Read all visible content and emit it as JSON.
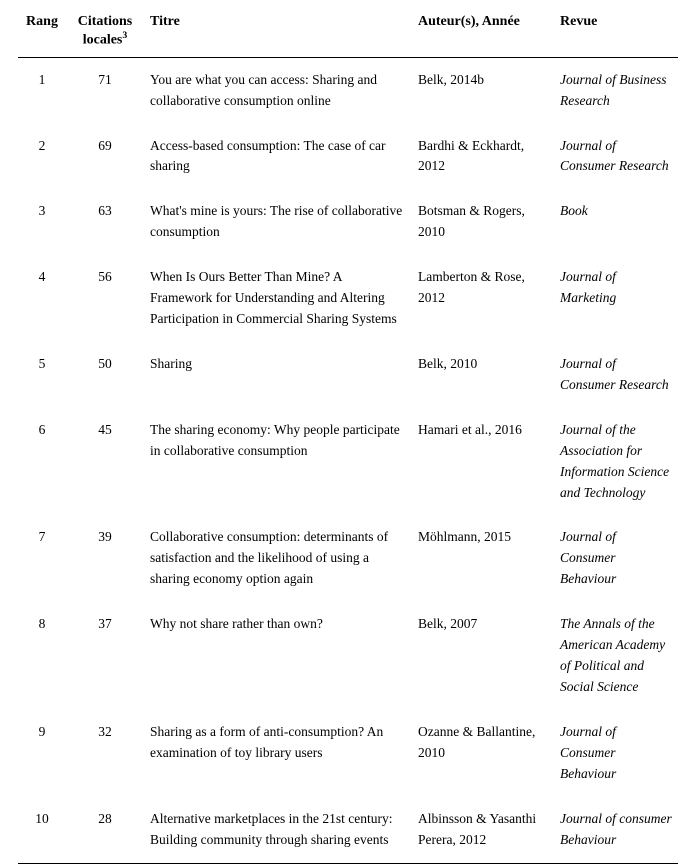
{
  "table": {
    "columns": {
      "rang": "Rang",
      "citations": "Citations locales",
      "citations_sup": "3",
      "titre": "Titre",
      "auteurs": "Auteur(s), Année",
      "revue": "Revue"
    },
    "rows": [
      {
        "rang": "1",
        "citations": "71",
        "titre": "You are what you can access: Sharing and collaborative consumption online",
        "auteurs": "Belk, 2014b",
        "revue": "Journal of Business Research"
      },
      {
        "rang": "2",
        "citations": "69",
        "titre": "Access-based consumption: The case of car sharing",
        "auteurs": "Bardhi & Eckhardt, 2012",
        "revue": "Journal of Consumer Research"
      },
      {
        "rang": "3",
        "citations": "63",
        "titre": "What's mine is yours: The rise of collaborative consumption",
        "auteurs": "Botsman & Rogers, 2010",
        "revue": "Book"
      },
      {
        "rang": "4",
        "citations": "56",
        "titre": "When Is Ours Better Than Mine? A Framework for Understanding and Altering Participation in Commercial Sharing Systems",
        "auteurs": "Lamberton & Rose, 2012",
        "revue": "Journal of Marketing"
      },
      {
        "rang": "5",
        "citations": "50",
        "titre": "Sharing",
        "auteurs": "Belk, 2010",
        "revue": "Journal of Consumer Research"
      },
      {
        "rang": "6",
        "citations": "45",
        "titre": "The sharing economy: Why people participate in collaborative consumption",
        "auteurs": "Hamari et al., 2016",
        "revue": "Journal of the Association for Information Science and Technology"
      },
      {
        "rang": "7",
        "citations": "39",
        "titre": "Collaborative consumption: determinants of satisfaction and the likelihood of using a sharing economy option again",
        "auteurs": "Möhlmann, 2015",
        "revue": "Journal of Consumer Behaviour"
      },
      {
        "rang": "8",
        "citations": "37",
        "titre": "Why not share rather than own?",
        "auteurs": "Belk, 2007",
        "revue": "The Annals of the American Academy of Political and Social Science"
      },
      {
        "rang": "9",
        "citations": "32",
        "titre": "Sharing as a form of anti-consumption? An examination of toy library users",
        "auteurs": "Ozanne & Ballantine, 2010",
        "revue": "Journal of Consumer Behaviour"
      },
      {
        "rang": "10",
        "citations": "28",
        "titre": "Alternative marketplaces in the 21st century: Building community through sharing events",
        "auteurs": "Albinsson & Yasanthi Perera, 2012",
        "revue": "Journal of consumer Behaviour"
      }
    ]
  }
}
